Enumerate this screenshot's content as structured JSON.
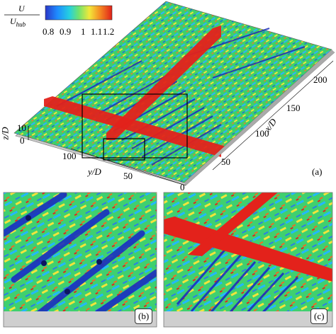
{
  "colorbar": {
    "label_num": "U",
    "label_den": "U",
    "label_den_sub": "hub",
    "ticks": [
      "0.8",
      "0.9",
      "1",
      "1.1",
      "1.2"
    ],
    "colors": [
      "#2b36c8",
      "#1e8cff",
      "#25d0e0",
      "#6fe36f",
      "#f2e83a",
      "#f58a22",
      "#e0201a"
    ]
  },
  "axes": {
    "z_label": "z/D",
    "z_ticks": [
      "10",
      "0"
    ],
    "y_label": "y/D",
    "y_ticks": [
      "100",
      "50",
      "0"
    ],
    "x_label": "x/D",
    "x_ticks": [
      "50",
      "100",
      "150",
      "200"
    ]
  },
  "panels": {
    "a": "(a)",
    "b": "(b)",
    "c": "(c)"
  }
}
